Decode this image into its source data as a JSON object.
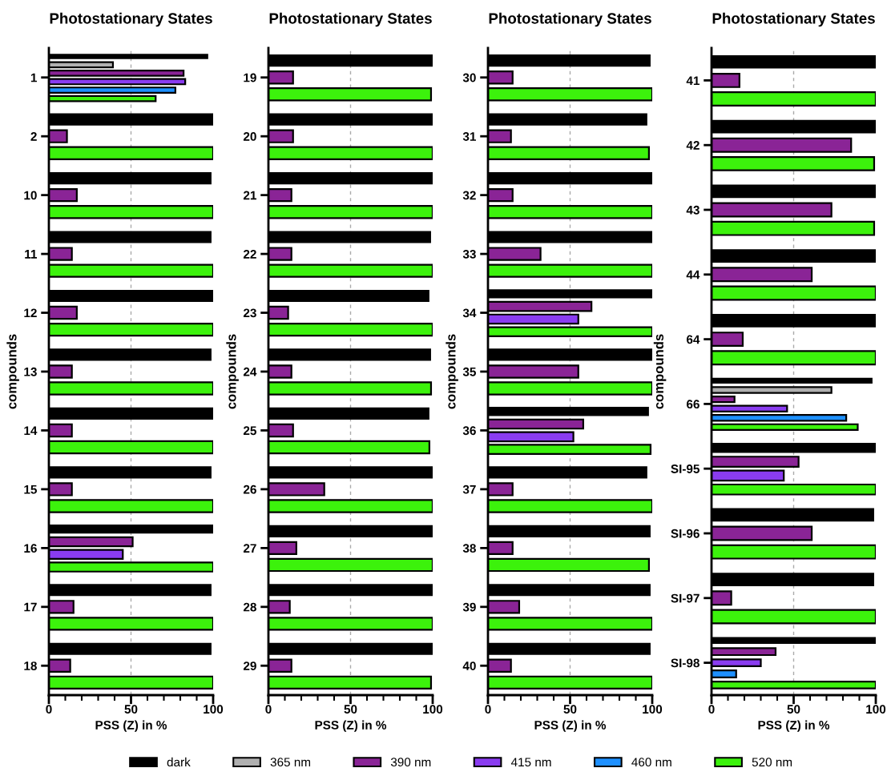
{
  "chart_data": [
    {
      "type": "bar",
      "orientation": "horizontal",
      "title": "Photostationary States",
      "xlabel": "PSS (Z) in %",
      "ylabel": "compounds",
      "legend": "bottom",
      "categories": [
        "1",
        "2",
        "10",
        "11",
        "12",
        "13",
        "14",
        "15",
        "16",
        "17",
        "18"
      ],
      "xlim": [
        0,
        100
      ],
      "xticks": [
        0,
        {
          "value": 10,
          "label": null
        },
        {
          "value": 20,
          "label": null
        },
        {
          "value": 30,
          "label": null
        },
        {
          "value": 40,
          "label": null
        },
        50,
        {
          "value": 60,
          "label": null
        },
        {
          "value": 70,
          "label": null
        },
        {
          "value": 80,
          "label": null
        },
        {
          "value": 90,
          "label": null
        },
        100
      ],
      "ref_lines": [
        {
          "axis": "x",
          "value": 50,
          "label": null,
          "color": "#aaaaaa",
          "line_style": "dashed"
        }
      ],
      "series": [
        {
          "name": "dark",
          "color": "#000000",
          "values": [
            97,
            100,
            99,
            99,
            100,
            99,
            100,
            99,
            100,
            99,
            99
          ]
        },
        {
          "name": "365 nm",
          "color": "#b0b0b0",
          "values": [
            39,
            null,
            null,
            null,
            null,
            null,
            null,
            null,
            null,
            null,
            null
          ]
        },
        {
          "name": "390 nm",
          "color": "#8a2496",
          "values": [
            82,
            11,
            17,
            14,
            17,
            14,
            14,
            14,
            51,
            15,
            13
          ]
        },
        {
          "name": "415 nm",
          "color": "#8a3cf0",
          "values": [
            83,
            null,
            null,
            null,
            null,
            null,
            null,
            null,
            45,
            null,
            null
          ]
        },
        {
          "name": "460 nm",
          "color": "#1e90ff",
          "values": [
            77,
            null,
            null,
            null,
            null,
            null,
            null,
            null,
            null,
            null,
            null
          ]
        },
        {
          "name": "520 nm",
          "color": "#3cf20c",
          "values": [
            65,
            100,
            100,
            100,
            100,
            100,
            100,
            100,
            100,
            100,
            100
          ]
        }
      ]
    },
    {
      "type": "bar",
      "orientation": "horizontal",
      "title": "Photostationary States",
      "xlabel": "PSS (Z) in %",
      "ylabel": "compounds",
      "categories": [
        "19",
        "20",
        "21",
        "22",
        "23",
        "24",
        "25",
        "26",
        "27",
        "28",
        "29"
      ],
      "xlim": [
        0,
        100
      ],
      "xticks": [
        0,
        {
          "value": 10,
          "label": null
        },
        {
          "value": 20,
          "label": null
        },
        {
          "value": 30,
          "label": null
        },
        {
          "value": 40,
          "label": null
        },
        50,
        {
          "value": 60,
          "label": null
        },
        {
          "value": 70,
          "label": null
        },
        {
          "value": 80,
          "label": null
        },
        {
          "value": 90,
          "label": null
        },
        100
      ],
      "ref_lines": [
        {
          "axis": "x",
          "value": 50,
          "label": null,
          "color": "#aaaaaa",
          "line_style": "dashed"
        }
      ],
      "series": [
        {
          "name": "dark",
          "color": "#000000",
          "values": [
            100,
            100,
            100,
            99,
            98,
            99,
            98,
            100,
            100,
            100,
            100
          ]
        },
        {
          "name": "390 nm",
          "color": "#8a2496",
          "values": [
            15,
            15,
            14,
            14,
            12,
            14,
            15,
            34,
            17,
            13,
            14
          ]
        },
        {
          "name": "520 nm",
          "color": "#3cf20c",
          "values": [
            99,
            100,
            100,
            100,
            100,
            99,
            98,
            100,
            100,
            100,
            99
          ]
        }
      ]
    },
    {
      "type": "bar",
      "orientation": "horizontal",
      "title": "Photostationary States",
      "xlabel": "PSS (Z) in %",
      "ylabel": "compounds",
      "categories": [
        "30",
        "31",
        "32",
        "33",
        "34",
        "35",
        "36",
        "37",
        "38",
        "39",
        "40"
      ],
      "xlim": [
        0,
        100
      ],
      "xticks": [
        0,
        {
          "value": 10,
          "label": null
        },
        {
          "value": 20,
          "label": null
        },
        {
          "value": 30,
          "label": null
        },
        {
          "value": 40,
          "label": null
        },
        50,
        {
          "value": 60,
          "label": null
        },
        {
          "value": 70,
          "label": null
        },
        {
          "value": 80,
          "label": null
        },
        {
          "value": 90,
          "label": null
        },
        100
      ],
      "ref_lines": [
        {
          "axis": "x",
          "value": 50,
          "label": null,
          "color": "#aaaaaa",
          "line_style": "dashed"
        }
      ],
      "series": [
        {
          "name": "dark",
          "color": "#000000",
          "values": [
            99,
            97,
            100,
            100,
            100,
            100,
            98,
            97,
            99,
            99,
            99
          ]
        },
        {
          "name": "390 nm",
          "color": "#8a2496",
          "values": [
            15,
            14,
            15,
            32,
            63,
            55,
            58,
            15,
            15,
            19,
            14
          ]
        },
        {
          "name": "415 nm",
          "color": "#8a3cf0",
          "values": [
            null,
            null,
            null,
            null,
            55,
            null,
            52,
            null,
            null,
            null,
            null
          ]
        },
        {
          "name": "520 nm",
          "color": "#3cf20c",
          "values": [
            100,
            98,
            100,
            100,
            100,
            100,
            99,
            100,
            98,
            100,
            100
          ]
        }
      ]
    },
    {
      "type": "bar",
      "orientation": "horizontal",
      "title": "Photostationary States",
      "xlabel": "PSS (Z) in %",
      "ylabel": "compounds",
      "categories": [
        "41",
        "42",
        "43",
        "44",
        "64",
        "66",
        "SI-95",
        "SI-96",
        "SI-97",
        "SI-98"
      ],
      "xlim": [
        0,
        100
      ],
      "xticks": [
        0,
        {
          "value": 10,
          "label": null
        },
        {
          "value": 20,
          "label": null
        },
        {
          "value": 30,
          "label": null
        },
        {
          "value": 40,
          "label": null
        },
        50,
        {
          "value": 60,
          "label": null
        },
        {
          "value": 70,
          "label": null
        },
        {
          "value": 80,
          "label": null
        },
        {
          "value": 90,
          "label": null
        },
        100
      ],
      "ref_lines": [
        {
          "axis": "x",
          "value": 50,
          "label": null,
          "color": "#aaaaaa",
          "line_style": "dashed"
        }
      ],
      "series": [
        {
          "name": "dark",
          "color": "#000000",
          "values": [
            100,
            100,
            100,
            100,
            100,
            98,
            100,
            99,
            99,
            100
          ]
        },
        {
          "name": "365 nm",
          "color": "#b0b0b0",
          "values": [
            null,
            null,
            null,
            null,
            null,
            73,
            null,
            null,
            null,
            null
          ]
        },
        {
          "name": "390 nm",
          "color": "#8a2496",
          "values": [
            17,
            85,
            73,
            61,
            19,
            14,
            53,
            61,
            12,
            39
          ]
        },
        {
          "name": "415 nm",
          "color": "#8a3cf0",
          "values": [
            null,
            null,
            null,
            null,
            null,
            46,
            44,
            null,
            null,
            30
          ]
        },
        {
          "name": "460 nm",
          "color": "#1e90ff",
          "values": [
            null,
            null,
            null,
            null,
            null,
            82,
            null,
            null,
            null,
            15
          ]
        },
        {
          "name": "520 nm",
          "color": "#3cf20c",
          "values": [
            100,
            99,
            99,
            100,
            100,
            89,
            100,
            100,
            100,
            100
          ]
        }
      ]
    }
  ]
}
